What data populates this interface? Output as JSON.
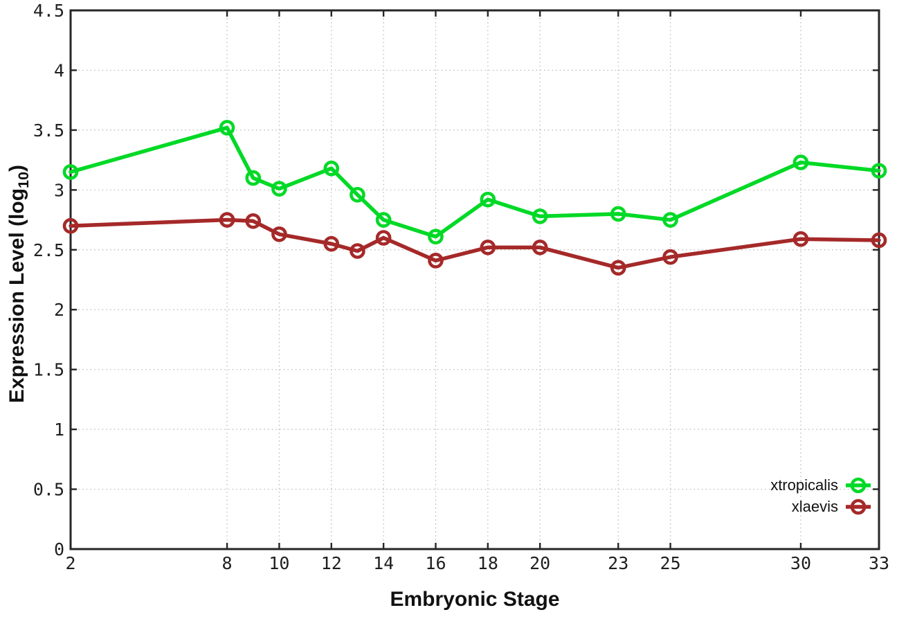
{
  "chart_data": {
    "type": "line",
    "title": "",
    "xlabel": "Embryonic Stage",
    "ylabel": {
      "prefix": "Expression Level (log",
      "subscript": "10",
      "suffix": ")"
    },
    "xlim": [
      2,
      33
    ],
    "ylim": [
      0,
      4.5
    ],
    "grid": true,
    "grid_style": "dotted",
    "legend_position": "inside-bottom-right",
    "marker": "open-circle",
    "x": [
      2,
      8,
      9,
      10,
      12,
      13,
      14,
      16,
      18,
      20,
      23,
      25,
      30,
      33
    ],
    "xtick_values": [
      2,
      8,
      10,
      12,
      14,
      16,
      18,
      20,
      23,
      25,
      30,
      33
    ],
    "xtick_labels": [
      "2",
      "8",
      "10",
      "12",
      "14",
      "16",
      "18",
      "20",
      "23",
      "25",
      "30",
      "33"
    ],
    "ytick_values": [
      0,
      0.5,
      1,
      1.5,
      2,
      2.5,
      3,
      3.5,
      4,
      4.5
    ],
    "ytick_labels": [
      "0",
      "0.5",
      "1",
      "1.5",
      "2",
      "2.5",
      "3",
      "3.5",
      "4",
      "4.5"
    ],
    "series": [
      {
        "name": "xtropicalis",
        "color": "#00d926",
        "values": [
          3.15,
          3.52,
          3.1,
          3.01,
          3.18,
          2.96,
          2.75,
          2.61,
          2.92,
          2.78,
          2.8,
          2.75,
          3.23,
          3.16
        ]
      },
      {
        "name": "xlaevis",
        "color": "#a52929",
        "values": [
          2.7,
          2.75,
          2.74,
          2.63,
          2.55,
          2.49,
          2.6,
          2.41,
          2.52,
          2.52,
          2.35,
          2.44,
          2.59,
          2.58
        ]
      }
    ]
  },
  "colors": {
    "background": "#ffffff",
    "border": "#262626",
    "grid": "#b3b3b3",
    "tick_text": "#1f1f1f",
    "xtropicalis": "#00d926",
    "xlaevis": "#a52929"
  }
}
